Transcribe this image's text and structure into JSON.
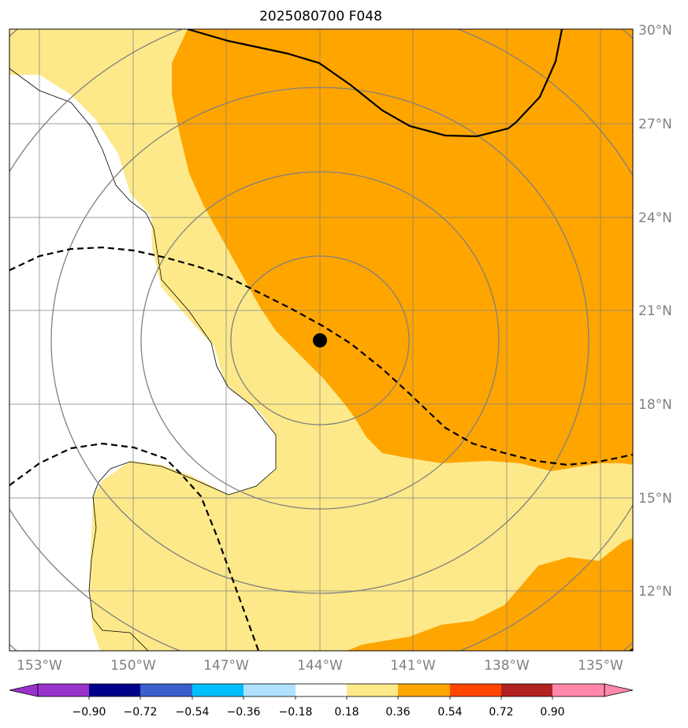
{
  "title": "2025080700 F048",
  "map": {
    "lat_labels": [
      "30°N",
      "27°N",
      "24°N",
      "21°N",
      "18°N",
      "15°N",
      "12°N"
    ],
    "lon_labels": [
      "153°W",
      "150°W",
      "147°W",
      "144°W",
      "141°W",
      "138°W",
      "135°W"
    ],
    "center_marker": {
      "lon": -144,
      "lat": 20
    }
  },
  "colorbar": {
    "tick_labels": [
      "−0.90",
      "−0.72",
      "−0.54",
      "−0.36",
      "−0.18",
      "0.18",
      "0.36",
      "0.54",
      "0.72",
      "0.90"
    ],
    "colors": [
      "#9932CC",
      "#00008B",
      "#3A5FCD",
      "#00BFFF",
      "#B0E2FF",
      "#FFFFFF",
      "#FDE98A",
      "#FFA500",
      "#FF4500",
      "#B22222",
      "#FF88AA"
    ]
  },
  "colors": {
    "light_fill": "#FDE98A",
    "orange_fill": "#FFA500",
    "grid": "#808080"
  }
}
